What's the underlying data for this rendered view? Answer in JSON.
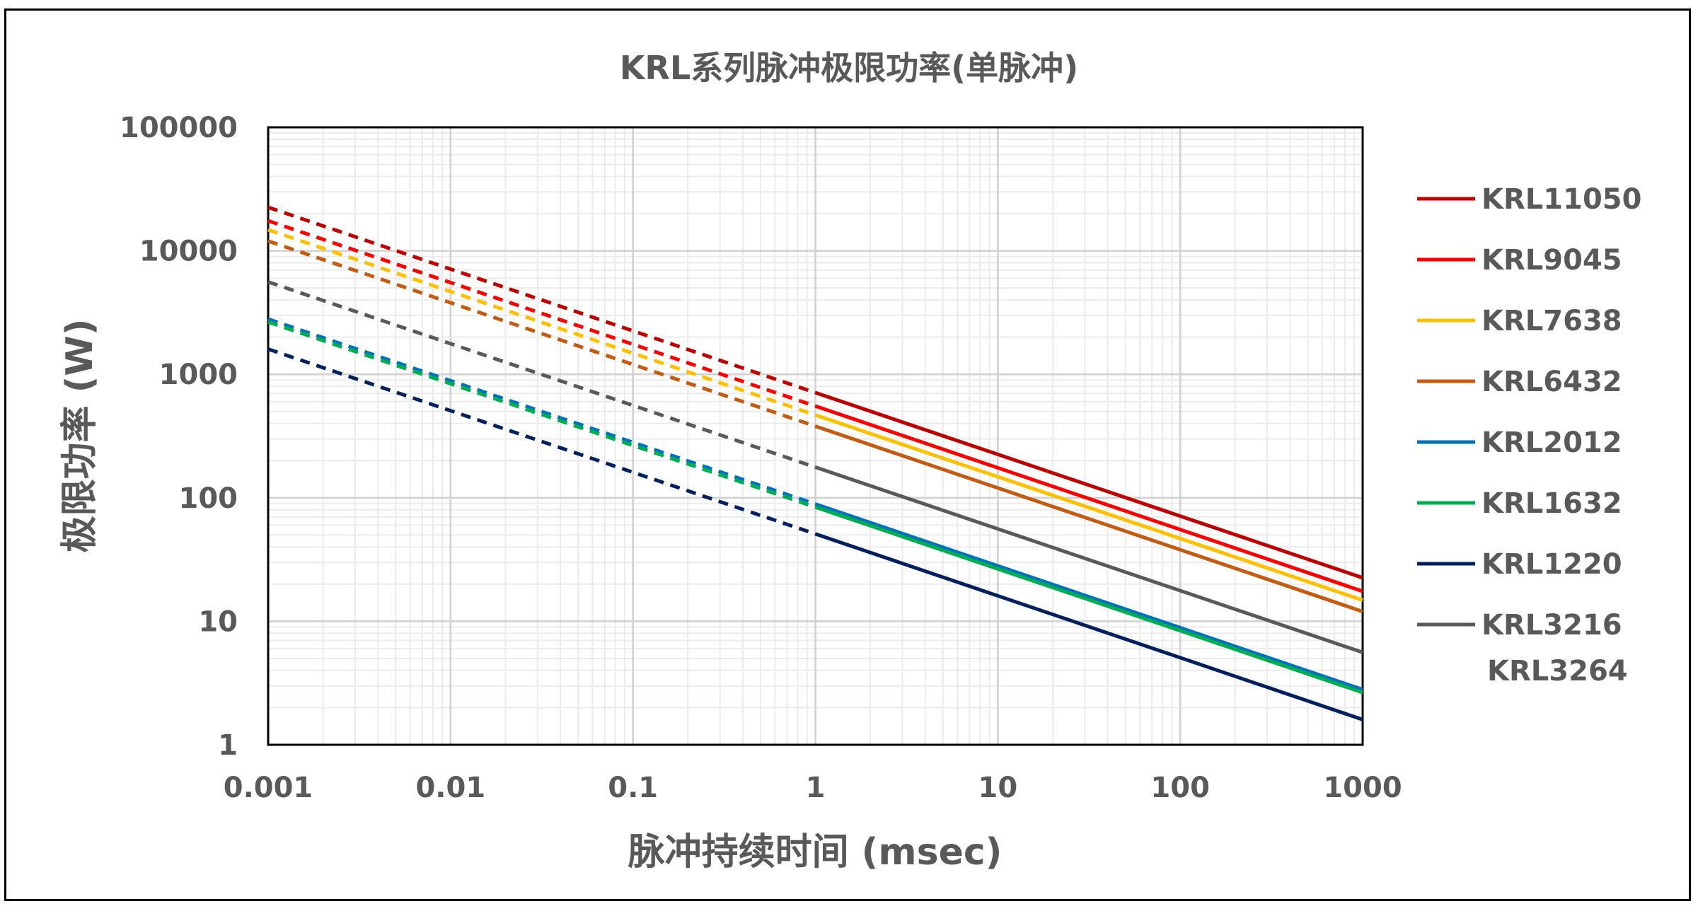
{
  "chart_data": {
    "type": "line",
    "title": "KRL系列脉冲极限功率(单脉冲)",
    "xlabel": "脉冲持续时间 (msec)",
    "ylabel": "极限功率 (W)",
    "x_scale": "log",
    "y_scale": "log",
    "xlim": [
      0.001,
      1000
    ],
    "ylim": [
      1,
      100000
    ],
    "x_ticks": [
      "0.001",
      "0.01",
      "0.1",
      "1",
      "10",
      "100",
      "1000"
    ],
    "y_ticks": [
      "1",
      "10",
      "100",
      "1000",
      "10000",
      "100000"
    ],
    "grid": true,
    "legend_position": "right",
    "dashed_range_x": [
      0.001,
      1
    ],
    "solid_range_x": [
      1,
      1000
    ],
    "series": [
      {
        "name": "KRL11050",
        "color": "#C00000",
        "x": [
          0.001,
          1,
          1000
        ],
        "y": [
          22500,
          710,
          22.5
        ]
      },
      {
        "name": "KRL9045",
        "color": "#FF0000",
        "x": [
          0.001,
          1,
          1000
        ],
        "y": [
          17500,
          553,
          17.5
        ]
      },
      {
        "name": "KRL7638",
        "color": "#FFC000",
        "x": [
          0.001,
          1,
          1000
        ],
        "y": [
          14800,
          468,
          14.8
        ]
      },
      {
        "name": "KRL6432",
        "color": "#C55A11",
        "x": [
          0.001,
          1,
          1000
        ],
        "y": [
          12000,
          380,
          12
        ]
      },
      {
        "name": "KRL2012",
        "color": "#0070C0",
        "x": [
          0.001,
          1,
          1000
        ],
        "y": [
          2800,
          89,
          2.8
        ]
      },
      {
        "name": "KRL1632",
        "color": "#00B050",
        "x": [
          0.001,
          1,
          1000
        ],
        "y": [
          2650,
          84,
          2.65
        ]
      },
      {
        "name": "KRL1220",
        "color": "#002060",
        "x": [
          0.001,
          1,
          1000
        ],
        "y": [
          1600,
          51,
          1.6
        ]
      },
      {
        "name": "KRL3216",
        "color": "#595959",
        "x": [
          0.001,
          1,
          1000
        ],
        "y": [
          5600,
          177,
          5.6
        ]
      }
    ],
    "legend_extra_label": "KRL3264"
  }
}
